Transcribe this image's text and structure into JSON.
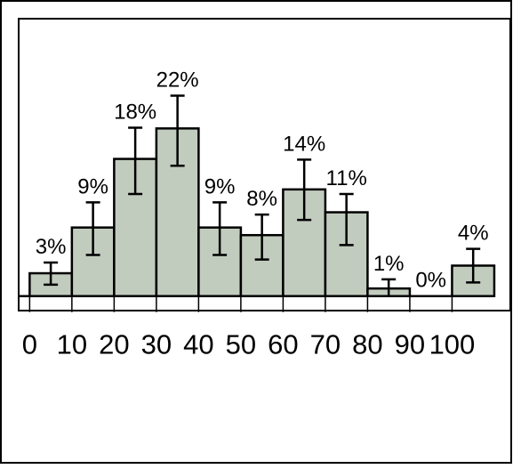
{
  "chart_data": {
    "type": "bar",
    "title": "",
    "xlabel": "",
    "ylabel": "",
    "bins": [
      {
        "x0": 0,
        "x1": 10,
        "value": 3,
        "label": "3%",
        "err_low": 1.5,
        "err_high": 4.4
      },
      {
        "x0": 10,
        "x1": 20,
        "value": 9,
        "label": "9%",
        "err_low": 5.4,
        "err_high": 12.3
      },
      {
        "x0": 20,
        "x1": 30,
        "value": 18,
        "label": "18%",
        "err_low": 13.4,
        "err_high": 22.1
      },
      {
        "x0": 30,
        "x1": 40,
        "value": 22,
        "label": "22%",
        "err_low": 17.1,
        "err_high": 26.3
      },
      {
        "x0": 40,
        "x1": 50,
        "value": 9,
        "label": "9%",
        "err_low": 5.4,
        "err_high": 12.3
      },
      {
        "x0": 50,
        "x1": 60,
        "value": 8,
        "label": "8%",
        "err_low": 4.8,
        "err_high": 10.7
      },
      {
        "x0": 60,
        "x1": 70,
        "value": 14,
        "label": "14%",
        "err_low": 10.0,
        "err_high": 17.9
      },
      {
        "x0": 70,
        "x1": 80,
        "value": 11,
        "label": "11%",
        "err_low": 6.7,
        "err_high": 13.4
      },
      {
        "x0": 80,
        "x1": 90,
        "value": 1,
        "label": "1%",
        "err_low": 0,
        "err_high": 2.2
      },
      {
        "x0": 90,
        "x1": 100,
        "value": 0,
        "label": "0%",
        "err_low": null,
        "err_high": null
      },
      {
        "x0": 100,
        "x1": 110,
        "value": 4,
        "label": "4%",
        "err_low": 1.8,
        "err_high": 6.2
      }
    ],
    "x_ticks": [
      0,
      10,
      20,
      30,
      40,
      50,
      60,
      70,
      80,
      90,
      100
    ],
    "x_tick_labels": [
      "0",
      "10",
      "20",
      "30",
      "40",
      "50",
      "60",
      "70",
      "80",
      "90",
      "100"
    ],
    "xlim": [
      -2.6,
      113.8
    ],
    "ylim": [
      -1.9,
      36.4
    ],
    "grid": false,
    "legend": "none",
    "colors": {
      "bar_fill": "#c2ccbe",
      "bar_stroke": "#000000",
      "error_bar": "#000000",
      "text": "#000000",
      "background": "#ffffff"
    }
  }
}
